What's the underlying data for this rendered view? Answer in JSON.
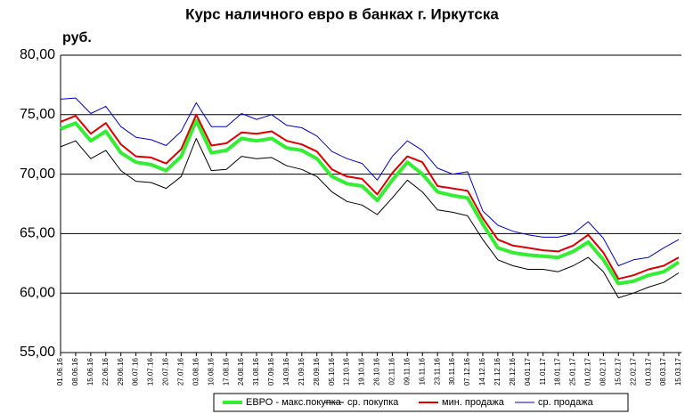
{
  "chart_data": {
    "type": "line",
    "title": "Курс наличного евро в банках г. Иркутска",
    "y_label": "руб.",
    "categories": [
      "01.06.16",
      "08.06.16",
      "15.06.16",
      "22.06.16",
      "29.06.16",
      "06.07.16",
      "13.07.16",
      "20.07.16",
      "27.07.16",
      "03.08.16",
      "10.08.16",
      "17.08.16",
      "24.08.16",
      "31.08.16",
      "07.09.16",
      "14.09.16",
      "21.09.16",
      "28.09.16",
      "05.10.16",
      "12.10.16",
      "19.10.16",
      "26.10.16",
      "02.11.16",
      "09.11.16",
      "16.11.16",
      "23.11.16",
      "30.11.16",
      "07.12.16",
      "14.12.16",
      "21.12.16",
      "28.12.16",
      "04.01.17",
      "11.01.17",
      "18.01.17",
      "25.01.17",
      "01.02.17",
      "08.02.17",
      "15.02.17",
      "22.02.17",
      "01.03.17",
      "08.03.17",
      "15.03.17"
    ],
    "series": [
      {
        "name": "ЕВРО - макс.покупка",
        "color": "#33ee33",
        "width": 4,
        "values": [
          73.8,
          74.3,
          72.8,
          73.6,
          71.8,
          71.0,
          70.8,
          70.3,
          71.5,
          74.5,
          71.8,
          72.0,
          73.0,
          72.8,
          73.0,
          72.2,
          72.0,
          71.3,
          69.8,
          69.2,
          69.0,
          67.8,
          69.5,
          71.0,
          70.0,
          68.5,
          68.2,
          68.0,
          65.8,
          63.8,
          63.4,
          63.2,
          63.1,
          63.0,
          63.5,
          64.3,
          62.8,
          60.8,
          61.0,
          61.5,
          61.8,
          62.6
        ]
      },
      {
        "name": "ср. покупка",
        "color": "#000000",
        "width": 1,
        "values": [
          72.3,
          72.8,
          71.3,
          72.0,
          70.3,
          69.4,
          69.3,
          68.8,
          69.8,
          73.0,
          70.3,
          70.4,
          71.5,
          71.3,
          71.4,
          70.7,
          70.4,
          69.8,
          68.5,
          67.7,
          67.4,
          66.6,
          68.0,
          69.5,
          68.5,
          67.0,
          66.8,
          66.5,
          64.5,
          62.8,
          62.3,
          62.0,
          62.0,
          61.8,
          62.3,
          63.0,
          61.8,
          59.6,
          60.0,
          60.5,
          60.9,
          61.7
        ]
      },
      {
        "name": "мин. продажа",
        "color": "#dd0000",
        "width": 2,
        "values": [
          74.4,
          74.9,
          73.4,
          74.3,
          72.5,
          71.5,
          71.4,
          70.9,
          72.1,
          75.0,
          72.4,
          72.6,
          73.5,
          73.4,
          73.6,
          72.8,
          72.5,
          71.9,
          70.4,
          69.8,
          69.6,
          68.3,
          70.1,
          71.5,
          71.0,
          69.0,
          68.8,
          68.6,
          66.3,
          64.5,
          64.0,
          63.8,
          63.6,
          63.5,
          64.0,
          64.9,
          63.4,
          61.2,
          61.5,
          62.0,
          62.3,
          63.0
        ]
      },
      {
        "name": "ср. продажа",
        "color": "#0000cc",
        "width": 1,
        "values": [
          76.3,
          76.4,
          75.1,
          75.7,
          74.0,
          73.1,
          72.9,
          72.4,
          73.6,
          76.0,
          74.0,
          74.0,
          75.1,
          74.6,
          75.0,
          74.1,
          73.9,
          73.2,
          71.9,
          71.3,
          70.9,
          69.5,
          71.5,
          72.8,
          72.0,
          70.5,
          70.0,
          70.2,
          66.9,
          65.7,
          65.2,
          64.9,
          64.7,
          64.7,
          65.0,
          66.0,
          64.6,
          62.3,
          62.8,
          63.0,
          63.8,
          64.5
        ]
      }
    ],
    "ylim": [
      55,
      80
    ],
    "yticks": [
      {
        "value": 55,
        "label": "55,00"
      },
      {
        "value": 60,
        "label": "60,00"
      },
      {
        "value": 65,
        "label": "65,00"
      },
      {
        "value": 70,
        "label": "70,00"
      },
      {
        "value": 75,
        "label": "75,00"
      },
      {
        "value": 80,
        "label": "80,00"
      }
    ],
    "grid": true,
    "legend": "bottom"
  }
}
